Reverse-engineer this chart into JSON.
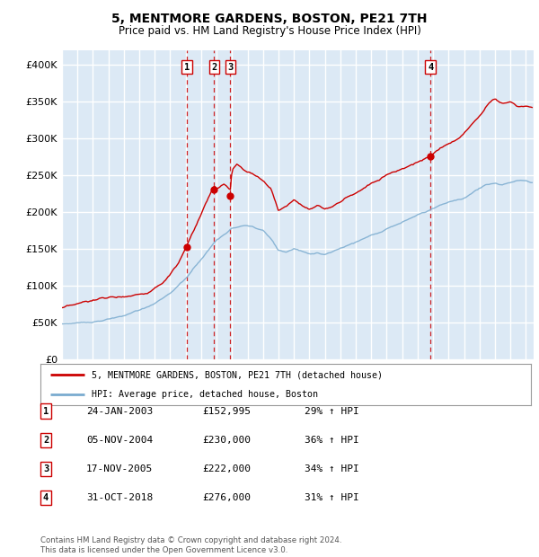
{
  "title": "5, MENTMORE GARDENS, BOSTON, PE21 7TH",
  "subtitle": "Price paid vs. HM Land Registry's House Price Index (HPI)",
  "ylabel_ticks": [
    "£0",
    "£50K",
    "£100K",
    "£150K",
    "£200K",
    "£250K",
    "£300K",
    "£350K",
    "£400K"
  ],
  "ytick_values": [
    0,
    50000,
    100000,
    150000,
    200000,
    250000,
    300000,
    350000,
    400000
  ],
  "ylim": [
    0,
    420000
  ],
  "xlim_start": 1995.0,
  "xlim_end": 2025.5,
  "sale_dates": [
    2003.07,
    2004.84,
    2005.88,
    2018.83
  ],
  "sale_prices": [
    152995,
    230000,
    222000,
    276000
  ],
  "sale_labels": [
    "1",
    "2",
    "3",
    "4"
  ],
  "legend_line1": "5, MENTMORE GARDENS, BOSTON, PE21 7TH (detached house)",
  "legend_line2": "HPI: Average price, detached house, Boston",
  "table_rows": [
    [
      "1",
      "24-JAN-2003",
      "£152,995",
      "29% ↑ HPI"
    ],
    [
      "2",
      "05-NOV-2004",
      "£230,000",
      "36% ↑ HPI"
    ],
    [
      "3",
      "17-NOV-2005",
      "£222,000",
      "34% ↑ HPI"
    ],
    [
      "4",
      "31-OCT-2018",
      "£276,000",
      "31% ↑ HPI"
    ]
  ],
  "footer": "Contains HM Land Registry data © Crown copyright and database right 2024.\nThis data is licensed under the Open Government Licence v3.0.",
  "background_color": "#dce9f5",
  "grid_color": "#ffffff",
  "red_line_color": "#cc0000",
  "blue_line_color": "#7aabcf",
  "dashed_line_color": "#cc0000",
  "fig_width": 6.0,
  "fig_height": 6.2
}
